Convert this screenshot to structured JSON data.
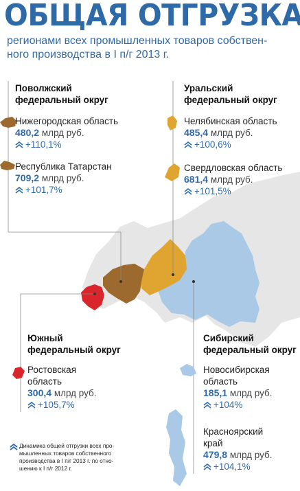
{
  "header": {
    "title": "ОБЩАЯ ОТГРУЗКА",
    "subtitle_line1": "регионами всех промышленных товаров собствен-",
    "subtitle_line2": "ного производства в I п/г 2013 г."
  },
  "districts": {
    "volga": {
      "title_line1": "Поволжский",
      "title_line2": "федеральный округ",
      "entries": [
        {
          "name": "Нижегородская область",
          "value": "480,2",
          "unit": "млрд руб.",
          "growth": "+110,1%"
        },
        {
          "name": "Республика Татарстан",
          "value": "709,2",
          "unit": "млрд руб.",
          "growth": "+101,7%"
        }
      ]
    },
    "ural": {
      "title_line1": "Уральский",
      "title_line2": "федеральный округ",
      "entries": [
        {
          "name": "Челябинская область",
          "value": "485,4",
          "unit": "млрд руб.",
          "growth": "+100,6%"
        },
        {
          "name": "Свердловская область",
          "value": "681,4",
          "unit": "млрд руб.",
          "growth": "+101,5%"
        }
      ]
    },
    "south": {
      "title_line1": "Южный",
      "title_line2": "федеральный округ",
      "entries": [
        {
          "name_line1": "Ростовская",
          "name_line2": "область",
          "value": "300,4",
          "unit": "млрд руб.",
          "growth": "+105,7%"
        }
      ]
    },
    "siberia": {
      "title_line1": "Сибирский",
      "title_line2": "федеральный округ",
      "entries": [
        {
          "name_line1": "Новосибирская",
          "name_line2": "область",
          "value": "185,1",
          "unit": "млрд руб.",
          "growth": "+104%"
        },
        {
          "name_line1": "Красноярский",
          "name_line2": "край",
          "value": "479,8",
          "unit": "млрд руб.",
          "growth": "+104,1%"
        }
      ]
    }
  },
  "footnote": {
    "line1": "Динамика общей отгрузки всех про-",
    "line2": "мышленных товаров собственного",
    "line3": "производства в I п/г 2013 г. по отно-",
    "line4": "шению к I п/г 2012 г."
  },
  "colors": {
    "accent": "#2f6aa8",
    "volga": "#9c6a2e",
    "ural": "#e0a431",
    "south": "#d8262c",
    "siberia": "#a9c9e6",
    "russia": "#e6e6e6"
  },
  "icons": {
    "growth": "double-chevron-up-icon"
  }
}
